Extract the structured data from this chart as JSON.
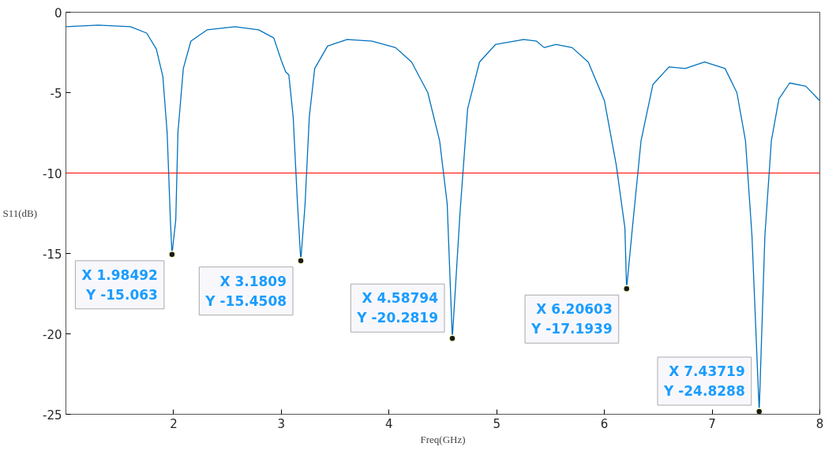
{
  "chart_data": {
    "type": "line",
    "xlabel": "Freq(GHz)",
    "ylabel": "S11(dB)",
    "xlim": [
      1,
      8
    ],
    "ylim": [
      -25,
      0
    ],
    "xticks": [
      2,
      3,
      4,
      5,
      6,
      7,
      8
    ],
    "yticks": [
      0,
      -5,
      -10,
      -15,
      -20,
      -25
    ],
    "grid": false,
    "marker": "none",
    "line_style": "solid",
    "series": [
      {
        "color": "#0072bd",
        "x": [
          1.0,
          1.3,
          1.6,
          1.75,
          1.84,
          1.9,
          1.94,
          1.97,
          1.98492,
          2.02,
          2.04,
          2.09,
          2.16,
          2.31,
          2.57,
          2.79,
          2.93,
          3.0,
          3.04,
          3.07,
          3.11,
          3.15,
          3.1809,
          3.22,
          3.26,
          3.31,
          3.43,
          3.61,
          3.84,
          4.06,
          4.21,
          4.36,
          4.47,
          4.54,
          4.58794,
          4.66,
          4.73,
          4.84,
          4.99,
          5.25,
          5.37,
          5.44,
          5.55,
          5.7,
          5.85,
          6.0,
          6.11,
          6.19,
          6.20603,
          6.26,
          6.34,
          6.45,
          6.6,
          6.75,
          6.93,
          7.12,
          7.23,
          7.31,
          7.37,
          7.43719,
          7.49,
          7.55,
          7.62,
          7.72,
          7.87,
          8.0
        ],
        "values": [
          -0.9,
          -0.8,
          -0.9,
          -1.3,
          -2.3,
          -4.0,
          -7.5,
          -12.9,
          -15.063,
          -12.9,
          -7.5,
          -3.5,
          -1.8,
          -1.1,
          -0.9,
          -1.1,
          -1.6,
          -3.0,
          -3.7,
          -3.9,
          -6.5,
          -11.9,
          -15.4508,
          -12.0,
          -6.5,
          -3.5,
          -2.1,
          -1.7,
          -1.8,
          -2.2,
          -3.1,
          -5.0,
          -8.0,
          -11.9,
          -20.2819,
          -12.4,
          -6.0,
          -3.1,
          -2.0,
          -1.7,
          -1.8,
          -2.2,
          -2.0,
          -2.2,
          -3.1,
          -5.5,
          -9.5,
          -13.4,
          -17.1939,
          -13.4,
          -8.0,
          -4.5,
          -3.4,
          -3.5,
          -3.1,
          -3.5,
          -5.0,
          -8.0,
          -13.9,
          -24.8288,
          -13.9,
          -8.0,
          -5.4,
          -4.4,
          -4.6,
          -5.5
        ]
      }
    ],
    "ref_lines": [
      {
        "axis": "y",
        "value": -10,
        "color": "#ff0000"
      }
    ],
    "annotations": [
      {
        "text": "X 1.98492\nY -15.063",
        "x": 1.98492,
        "y": -15.063
      },
      {
        "text": "X 3.1809\nY -15.4508",
        "x": 3.1809,
        "y": -15.4508
      },
      {
        "text": "X 4.58794\nY -20.2819",
        "x": 4.58794,
        "y": -20.2819
      },
      {
        "text": "X 6.20603\nY -17.1939",
        "x": 6.20603,
        "y": -17.1939
      },
      {
        "text": "X 7.43719\nY -24.8288",
        "x": 7.43719,
        "y": -24.8288
      }
    ]
  }
}
